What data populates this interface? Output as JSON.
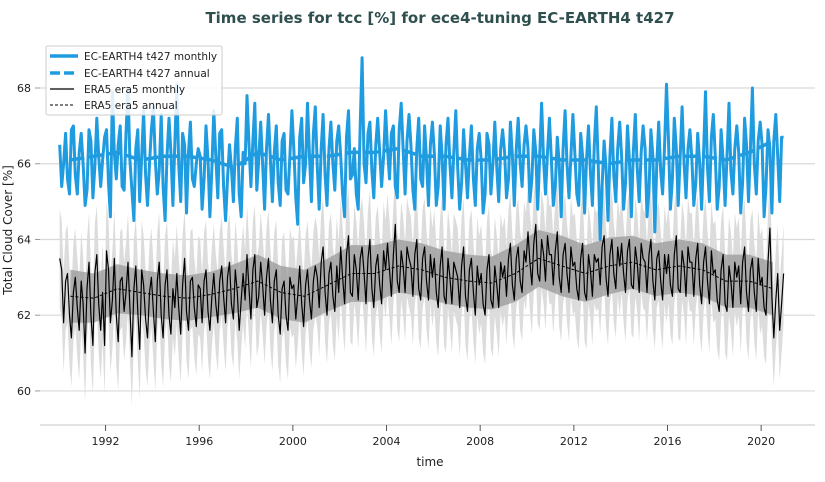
{
  "chart_data": {
    "type": "line",
    "title": "Time series for tcc [%] for ece4-tuning EC-EARTH4 t427",
    "xlabel": "time",
    "ylabel": "Total Cloud Cover [%]",
    "xlim": [
      1989.2,
      2022.3
    ],
    "ylim": [
      59.1,
      69.4
    ],
    "xticks": [
      1992,
      1996,
      2000,
      2004,
      2008,
      2012,
      2016,
      2020
    ],
    "yticks": [
      60,
      62,
      64,
      66,
      68
    ],
    "grid": "horizontal",
    "legend_position": "top-left",
    "years": [
      1990,
      1991,
      1992,
      1993,
      1994,
      1995,
      1996,
      1997,
      1998,
      1999,
      2000,
      2001,
      2002,
      2003,
      2004,
      2005,
      2006,
      2007,
      2008,
      2009,
      2010,
      2011,
      2012,
      2013,
      2014,
      2015,
      2016,
      2017,
      2018,
      2019,
      2020
    ],
    "colors": {
      "model": "#1f9be0",
      "obs": "#000000",
      "obs_band_annual": "#9a9a9a",
      "obs_band_monthly": "#dcdcdc",
      "grid": "#d9d9d9",
      "title": "#2f4f4f"
    },
    "series": [
      {
        "name": "EC-EARTH4 t427 monthly",
        "style": "solid-thick",
        "monthly_by_year": [
          [
            66.5,
            65.4,
            66.0,
            66.8,
            65.6,
            65.2,
            66.9,
            67.0,
            65.7,
            65.2,
            66.3,
            66.8
          ],
          [
            66.0,
            64.9,
            65.3,
            66.9,
            66.6,
            65.1,
            65.9,
            67.2,
            66.2,
            65.4,
            66.1,
            66.7
          ],
          [
            66.9,
            65.5,
            64.6,
            67.9,
            66.3,
            65.6,
            66.5,
            67.0,
            65.4,
            65.3,
            66.8,
            68.0
          ],
          [
            66.1,
            65.3,
            64.5,
            66.4,
            66.9,
            65.0,
            66.2,
            67.4,
            65.7,
            64.9,
            66.0,
            66.9
          ],
          [
            67.5,
            66.1,
            65.2,
            65.8,
            67.3,
            65.4,
            64.5,
            66.2,
            67.2,
            66.3,
            64.9,
            66.5
          ],
          [
            68.1,
            66.0,
            65.0,
            66.8,
            66.5,
            64.7,
            66.3,
            67.1,
            65.6,
            65.4,
            66.0,
            66.4
          ],
          [
            66.2,
            64.8,
            65.6,
            67.0,
            66.1,
            64.6,
            65.9,
            67.4,
            66.2,
            65.1,
            66.8,
            66.9
          ],
          [
            65.4,
            64.5,
            65.6,
            66.5,
            65.9,
            65.0,
            66.4,
            67.2,
            65.2,
            64.6,
            66.3,
            66.0
          ],
          [
            67.8,
            66.5,
            65.4,
            66.6,
            67.6,
            65.3,
            66.1,
            67.1,
            66.0,
            64.8,
            66.4,
            67.3
          ],
          [
            66.1,
            65.0,
            66.3,
            67.0,
            65.5,
            64.9,
            66.6,
            66.8,
            65.3,
            65.2,
            66.2,
            67.4
          ],
          [
            66.4,
            65.1,
            64.4,
            66.7,
            67.2,
            65.5,
            66.0,
            67.6,
            66.2,
            65.0,
            66.8,
            67.5
          ],
          [
            65.9,
            64.8,
            66.4,
            67.3,
            65.7,
            64.9,
            66.4,
            67.1,
            66.0,
            65.3,
            66.6,
            67.0
          ],
          [
            66.2,
            65.2,
            64.6,
            66.7,
            67.4,
            65.6,
            65.7,
            66.4,
            65.2,
            64.8,
            67.0,
            68.8
          ],
          [
            66.0,
            65.5,
            66.8,
            67.1,
            65.8,
            65.1,
            66.5,
            67.2,
            66.3,
            65.4,
            66.2,
            67.4
          ],
          [
            66.4,
            65.6,
            66.8,
            67.0,
            65.4,
            65.1,
            66.9,
            67.6,
            66.4,
            65.2,
            66.6,
            67.3
          ],
          [
            66.5,
            65.3,
            64.8,
            66.4,
            67.2,
            65.6,
            65.4,
            67.0,
            66.1,
            64.9,
            66.5,
            67.1
          ],
          [
            66.3,
            64.9,
            65.4,
            67.0,
            66.2,
            64.8,
            66.5,
            67.2,
            66.0,
            65.1,
            66.3,
            67.4
          ],
          [
            65.9,
            64.8,
            65.5,
            66.9,
            66.0,
            65.1,
            66.2,
            67.0,
            65.6,
            64.9,
            66.4,
            66.8
          ],
          [
            66.1,
            64.7,
            65.2,
            66.8,
            66.5,
            65.2,
            66.0,
            67.1,
            65.9,
            65.0,
            66.4,
            66.9
          ],
          [
            66.3,
            65.1,
            65.6,
            67.1,
            66.2,
            64.9,
            66.4,
            67.2,
            66.0,
            65.4,
            66.5,
            67.0
          ],
          [
            66.4,
            65.0,
            65.6,
            66.9,
            66.3,
            64.8,
            66.2,
            67.6,
            66.1,
            65.2,
            66.3,
            67.2
          ],
          [
            66.1,
            64.9,
            65.4,
            66.7,
            66.0,
            64.6,
            66.4,
            67.4,
            66.0,
            65.1,
            66.2,
            67.3
          ],
          [
            66.3,
            65.2,
            64.9,
            66.8,
            66.2,
            64.7,
            66.1,
            67.0,
            65.8,
            64.9,
            66.5,
            67.5
          ],
          [
            66.0,
            64.0,
            65.4,
            66.6,
            65.9,
            64.5,
            66.2,
            67.2,
            65.7,
            65.0,
            66.4,
            67.1
          ],
          [
            66.2,
            64.8,
            65.5,
            67.0,
            66.1,
            64.6,
            66.3,
            67.3,
            65.9,
            65.0,
            66.3,
            67.0
          ],
          [
            66.4,
            64.6,
            65.3,
            66.9,
            66.2,
            64.2,
            66.0,
            67.1,
            65.8,
            65.2,
            66.5,
            68.1
          ],
          [
            66.6,
            64.8,
            65.6,
            67.2,
            66.4,
            64.9,
            66.2,
            67.5,
            66.0,
            65.1,
            66.4,
            66.9
          ],
          [
            66.1,
            64.9,
            65.5,
            66.8,
            66.0,
            64.8,
            66.3,
            67.9,
            65.9,
            65.0,
            66.7,
            67.3
          ],
          [
            66.2,
            64.8,
            65.4,
            66.9,
            66.1,
            64.9,
            66.2,
            67.6,
            65.8,
            65.2,
            66.4,
            67.0
          ],
          [
            66.3,
            64.7,
            65.5,
            67.2,
            66.5,
            65.0,
            66.4,
            68.0,
            66.0,
            65.2,
            66.6,
            67.1
          ],
          [
            66.5,
            64.6,
            65.4,
            66.9,
            66.4,
            64.7,
            66.6,
            67.3,
            66.2,
            65.0,
            66.7,
            66.7
          ]
        ]
      },
      {
        "name": "EC-EARTH4 t427 annual",
        "style": "dashed-thick",
        "annual": [
          66.1,
          66.2,
          66.3,
          66.1,
          66.2,
          66.2,
          66.1,
          65.9,
          66.3,
          66.1,
          66.2,
          66.2,
          66.3,
          66.3,
          66.4,
          66.2,
          66.2,
          66.1,
          66.1,
          66.2,
          66.2,
          66.1,
          66.1,
          66.0,
          66.1,
          66.1,
          66.2,
          66.2,
          66.1,
          66.3,
          66.6
        ]
      },
      {
        "name": "ERA5 era5 monthly",
        "style": "solid-thin",
        "monthly_band_halfwidth": 1.3,
        "monthly_by_year": [
          [
            63.5,
            63.2,
            61.8,
            62.9,
            63.1,
            62.0,
            61.4,
            62.6,
            63.0,
            62.2,
            61.6,
            62.9
          ],
          [
            62.3,
            61.0,
            62.7,
            63.4,
            62.0,
            61.2,
            63.1,
            63.6,
            62.3,
            61.6,
            62.6,
            61.2
          ],
          [
            63.7,
            63.2,
            61.8,
            62.4,
            63.5,
            62.0,
            61.3,
            62.9,
            63.0,
            62.1,
            62.6,
            63.4
          ],
          [
            62.2,
            60.9,
            62.7,
            63.3,
            62.1,
            61.1,
            63.2,
            62.8,
            61.9,
            61.4,
            62.6,
            63.0
          ],
          [
            62.1,
            61.3,
            62.9,
            63.4,
            62.0,
            61.4,
            62.8,
            63.2,
            62.0,
            61.5,
            62.7,
            62.2
          ],
          [
            63.1,
            62.2,
            61.5,
            62.8,
            63.5,
            62.1,
            61.6,
            62.9,
            63.0,
            62.2,
            61.7,
            62.8
          ],
          [
            62.7,
            61.8,
            62.9,
            63.2,
            62.1,
            61.6,
            62.5,
            63.1,
            62.3,
            61.8,
            62.9,
            63.3
          ],
          [
            62.5,
            61.8,
            63.0,
            63.4,
            62.3,
            61.9,
            63.2,
            62.6,
            61.6,
            62.4,
            63.1,
            62.4
          ],
          [
            63.6,
            62.7,
            61.9,
            63.2,
            63.6,
            62.2,
            62.5,
            63.4,
            62.8,
            62.0,
            63.0,
            63.5
          ],
          [
            62.4,
            61.8,
            62.9,
            63.2,
            62.0,
            61.5,
            62.7,
            62.9,
            62.0,
            61.6,
            63.0,
            62.7
          ],
          [
            62.8,
            61.9,
            62.5,
            63.3,
            62.3,
            61.7,
            62.8,
            63.2,
            62.4,
            61.9,
            62.9,
            63.3
          ],
          [
            63.0,
            62.2,
            63.4,
            63.8,
            62.6,
            62.0,
            63.1,
            63.4,
            62.5,
            62.1,
            63.3,
            62.6
          ],
          [
            63.8,
            63.0,
            62.3,
            63.6,
            64.1,
            62.6,
            62.5,
            63.6,
            63.2,
            62.4,
            63.5,
            63.8
          ],
          [
            63.1,
            62.3,
            63.5,
            64.0,
            62.7,
            62.2,
            63.3,
            63.6,
            62.8,
            62.3,
            63.7,
            63.2
          ],
          [
            63.9,
            63.2,
            62.5,
            63.6,
            64.4,
            62.9,
            62.6,
            63.7,
            63.3,
            62.6,
            63.8,
            63.5
          ],
          [
            63.3,
            62.5,
            63.6,
            64.0,
            62.7,
            62.4,
            63.5,
            63.8,
            62.9,
            62.4,
            63.6,
            63.0
          ],
          [
            63.5,
            62.6,
            62.2,
            63.3,
            63.8,
            62.5,
            62.3,
            63.5,
            63.0,
            62.3,
            63.4,
            63.2
          ],
          [
            63.0,
            62.2,
            63.3,
            63.8,
            62.5,
            62.1,
            63.2,
            63.5,
            62.6,
            62.0,
            63.3,
            62.8
          ],
          [
            63.1,
            62.3,
            62.0,
            63.2,
            63.6,
            62.4,
            62.2,
            63.3,
            62.8,
            62.2,
            63.4,
            63.0
          ],
          [
            63.3,
            62.5,
            63.5,
            63.9,
            62.8,
            62.4,
            63.5,
            63.8,
            62.9,
            62.6,
            63.7,
            63.4
          ],
          [
            64.2,
            63.4,
            62.8,
            63.9,
            64.4,
            63.1,
            62.9,
            64.0,
            63.6,
            62.9,
            64.1,
            63.6
          ],
          [
            63.6,
            62.8,
            63.7,
            64.2,
            63.0,
            62.6,
            63.6,
            63.9,
            63.1,
            62.6,
            63.8,
            63.3
          ],
          [
            63.4,
            62.7,
            62.4,
            63.5,
            63.9,
            62.6,
            62.4,
            63.6,
            63.2,
            62.5,
            63.6,
            63.4
          ],
          [
            63.5,
            62.8,
            63.8,
            64.1,
            63.0,
            62.5,
            63.6,
            64.0,
            63.1,
            62.7,
            63.8,
            63.3
          ],
          [
            63.9,
            63.1,
            62.6,
            63.7,
            64.0,
            62.8,
            62.7,
            63.8,
            63.4,
            62.6,
            63.9,
            63.5
          ],
          [
            63.4,
            62.6,
            63.6,
            64.0,
            62.9,
            62.4,
            63.5,
            63.7,
            62.9,
            62.4,
            63.6,
            63.1
          ],
          [
            63.6,
            62.8,
            62.5,
            63.6,
            64.1,
            62.7,
            62.6,
            63.7,
            63.3,
            62.5,
            63.8,
            63.4
          ],
          [
            63.4,
            62.5,
            63.5,
            63.9,
            62.8,
            62.3,
            63.4,
            63.8,
            62.9,
            62.3,
            63.7,
            63.1
          ],
          [
            63.2,
            62.4,
            62.1,
            63.2,
            63.6,
            62.3,
            62.1,
            63.3,
            62.9,
            62.2,
            63.4,
            63.0
          ],
          [
            63.3,
            62.3,
            63.4,
            63.8,
            62.6,
            62.1,
            63.2,
            63.5,
            62.6,
            62.1,
            63.5,
            62.8
          ],
          [
            63.0,
            62.2,
            62.0,
            63.4,
            64.3,
            62.5,
            61.4,
            62.4,
            63.1,
            61.6,
            62.3,
            63.1
          ]
        ]
      },
      {
        "name": "ERA5 era5 annual",
        "style": "dashed-thin",
        "annual": [
          62.5,
          62.45,
          62.7,
          62.6,
          62.5,
          62.45,
          62.55,
          62.7,
          62.9,
          62.6,
          62.5,
          62.8,
          63.1,
          63.1,
          63.3,
          63.2,
          63.0,
          62.9,
          62.85,
          63.1,
          63.5,
          63.3,
          63.1,
          63.3,
          63.4,
          63.2,
          63.3,
          63.2,
          62.9,
          62.9,
          62.7
        ],
        "annual_band_halfwidth": [
          0.7,
          0.65,
          0.65,
          0.6,
          0.6,
          0.6,
          0.6,
          0.65,
          0.7,
          0.7,
          0.7,
          0.7,
          0.75,
          0.75,
          0.7,
          0.7,
          0.7,
          0.7,
          0.7,
          0.75,
          0.75,
          0.8,
          0.75,
          0.75,
          0.7,
          0.7,
          0.7,
          0.7,
          0.7,
          0.7,
          0.7
        ]
      }
    ]
  }
}
